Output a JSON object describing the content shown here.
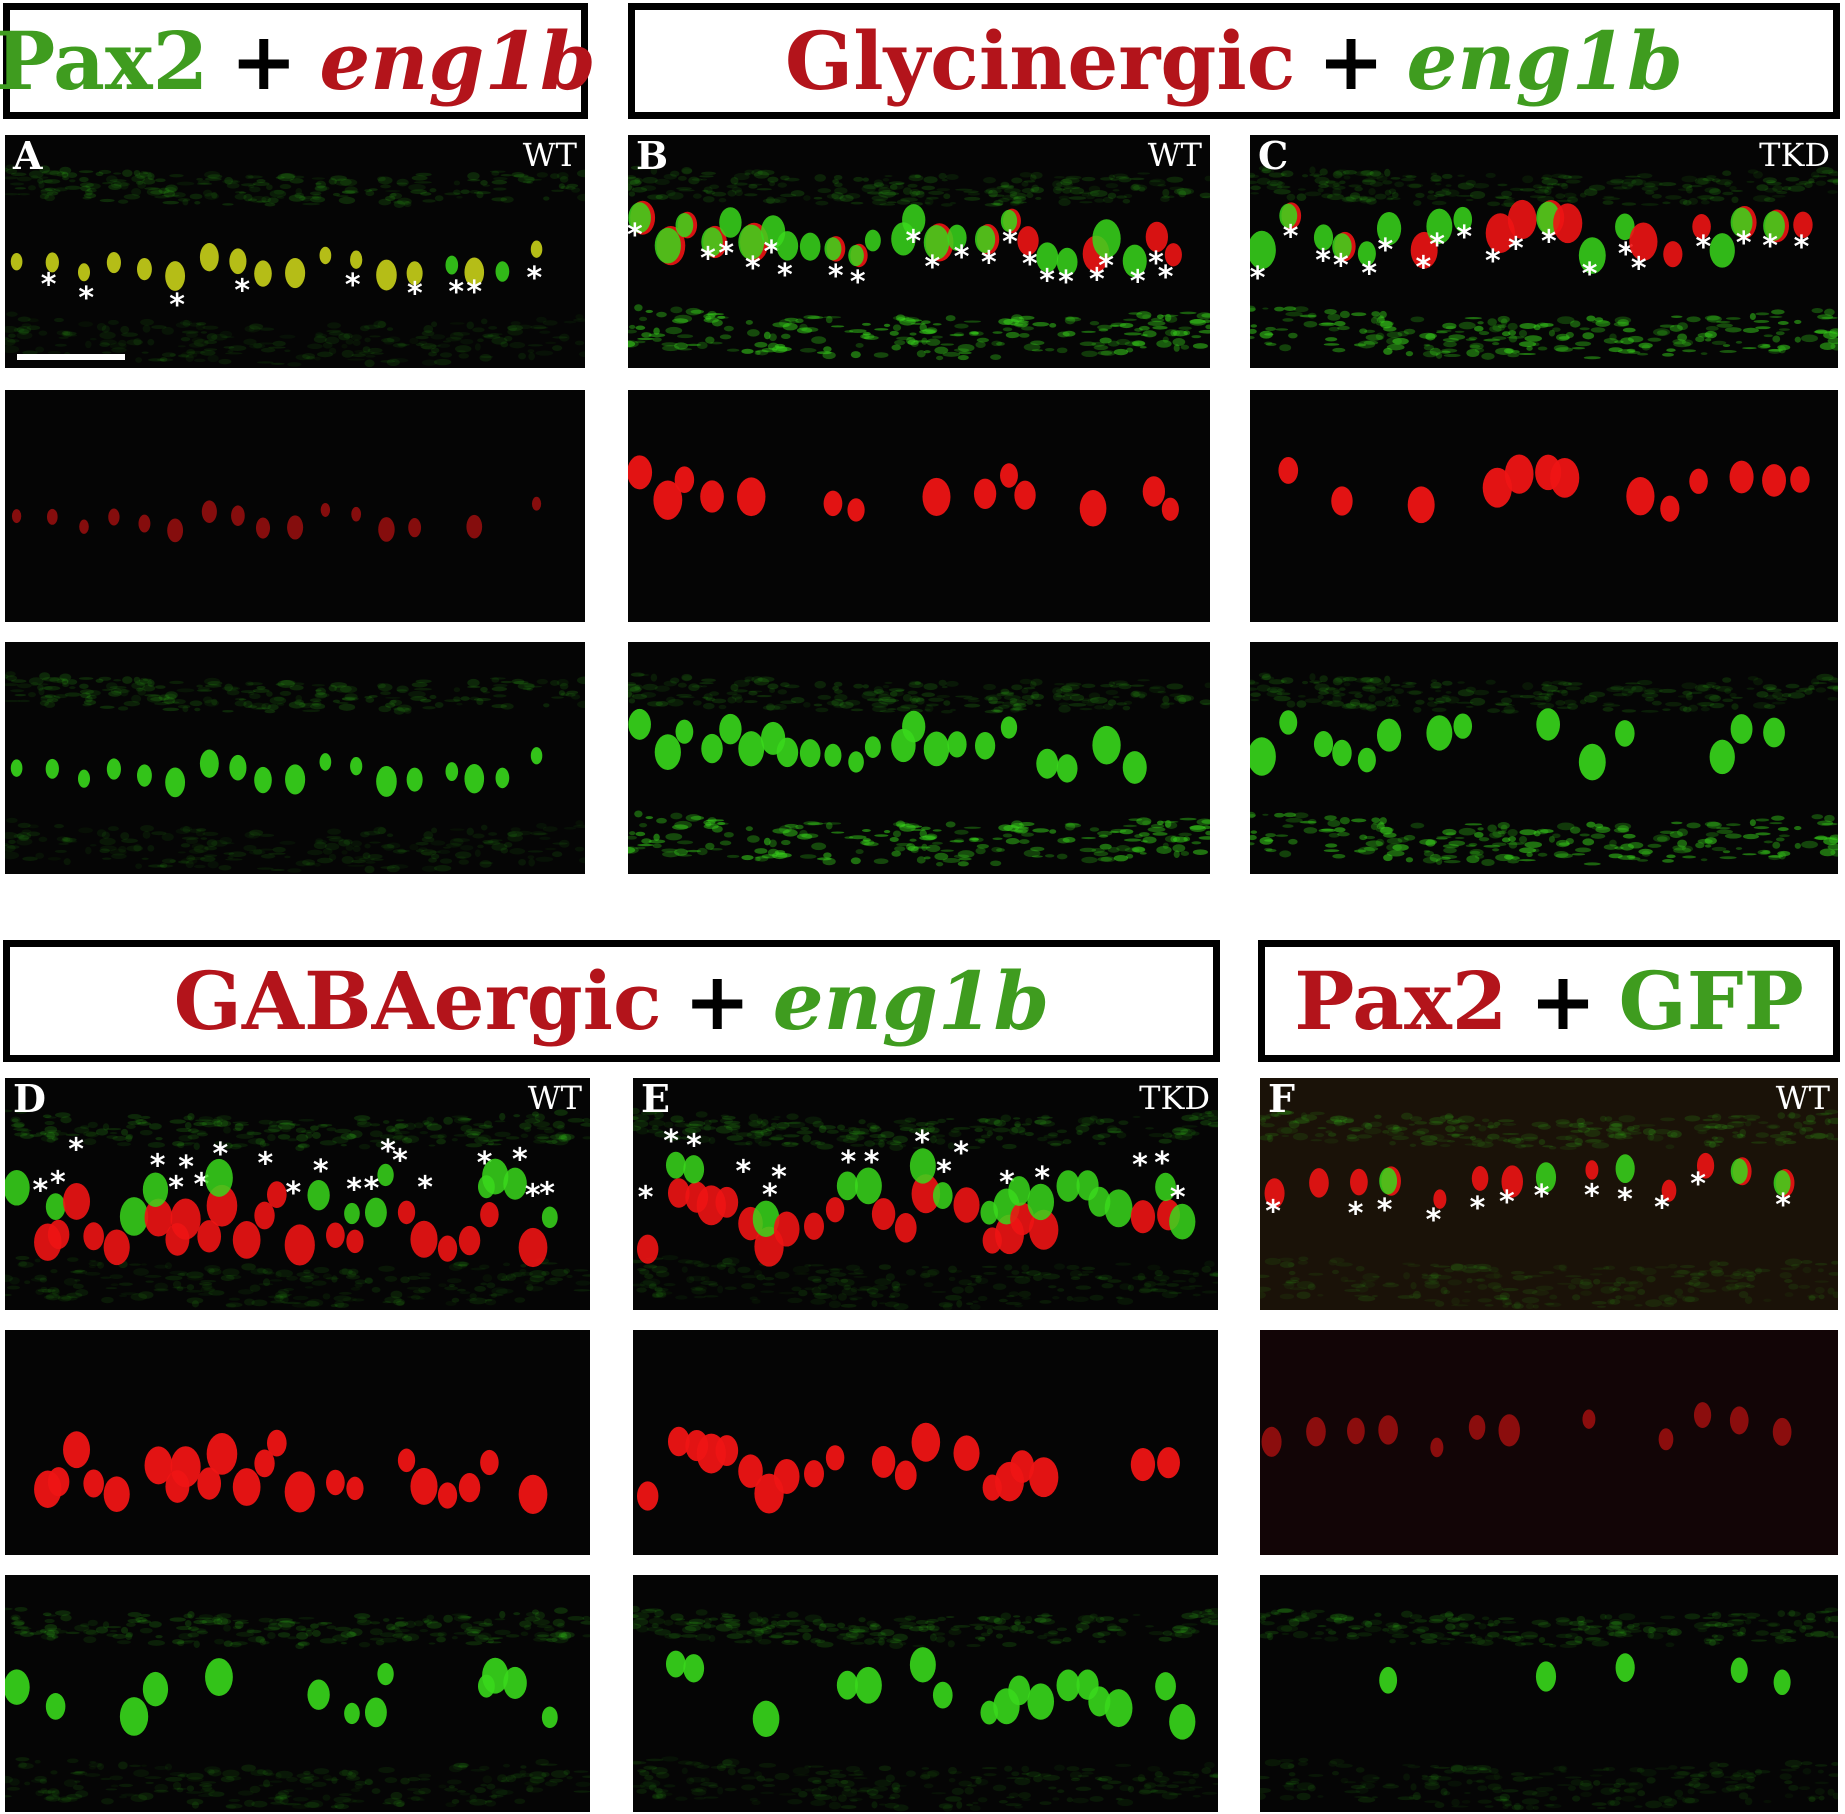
{
  "headers": {
    "h1": {
      "a": "Pax2",
      "plus": "+",
      "b": "eng1b"
    },
    "h2": {
      "a": "Glycinergic",
      "plus": "+",
      "b": "eng1b"
    },
    "h3": {
      "a": "GABAergic",
      "plus": "+",
      "b": "eng1b"
    },
    "h4": {
      "a": "Pax2",
      "plus": "+",
      "b": "GFP"
    }
  },
  "panels": {
    "A": {
      "letter": "A",
      "condition": "WT"
    },
    "B": {
      "letter": "B",
      "condition": "WT"
    },
    "C": {
      "letter": "C",
      "condition": "TKD"
    },
    "D": {
      "letter": "D",
      "condition": "WT"
    },
    "E": {
      "letter": "E",
      "condition": "TKD"
    },
    "F": {
      "letter": "F",
      "condition": "WT"
    }
  },
  "marker_symbol": "*",
  "colors": {
    "green_label": "#3f9c1f",
    "red_label": "#b3141b",
    "cell_green": "#39d81c",
    "cell_red": "#ee1414",
    "cell_merge": "#c9d11a"
  }
}
